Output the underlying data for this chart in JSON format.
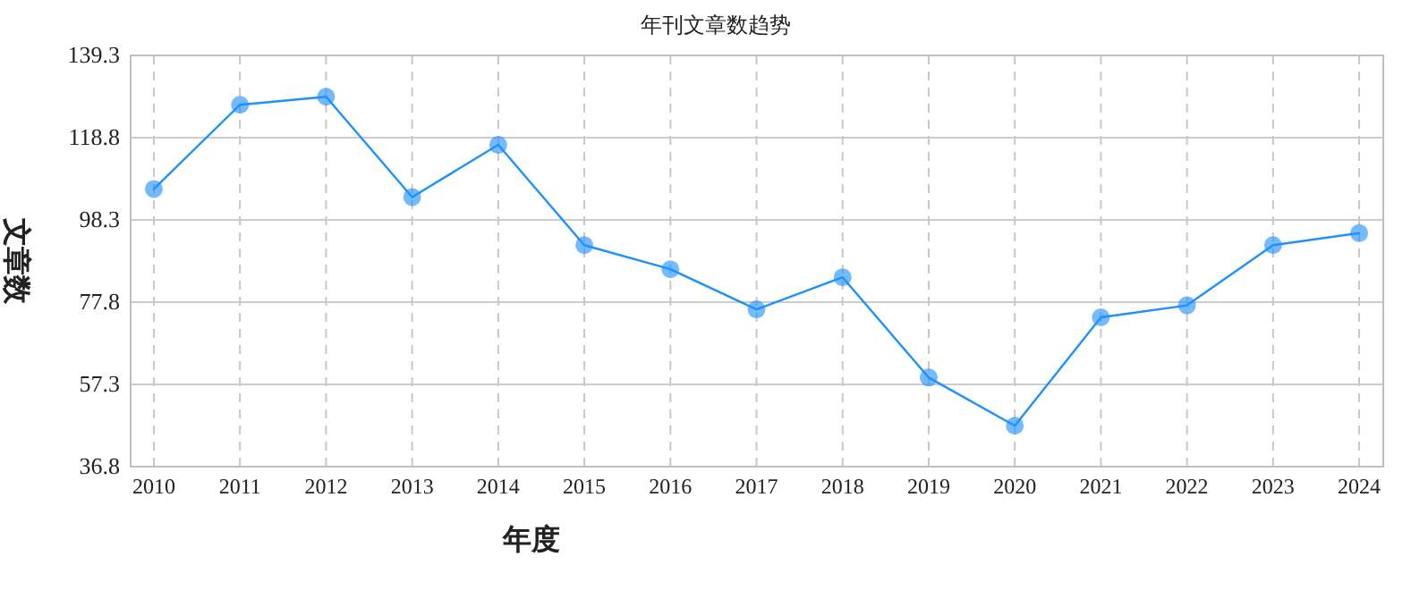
{
  "chart_data": {
    "type": "line",
    "title": "年刊文章数趋势",
    "xlabel": "年度",
    "ylabel": "文章数",
    "categories": [
      "2010",
      "2011",
      "2012",
      "2013",
      "2014",
      "2015",
      "2016",
      "2017",
      "2018",
      "2019",
      "2020",
      "2021",
      "2022",
      "2023",
      "2024"
    ],
    "series": [
      {
        "color": "#1e90ff",
        "values": [
          106,
          127,
          129,
          104,
          117,
          92,
          86,
          76,
          84,
          59,
          47,
          74,
          77,
          92,
          95
        ]
      }
    ],
    "ylim": [
      36.8,
      139.3
    ],
    "yticks": [
      36.8,
      57.3,
      77.8,
      98.3,
      118.8,
      139.3
    ],
    "grid": true,
    "marker": "circle",
    "line_style": "solid"
  }
}
